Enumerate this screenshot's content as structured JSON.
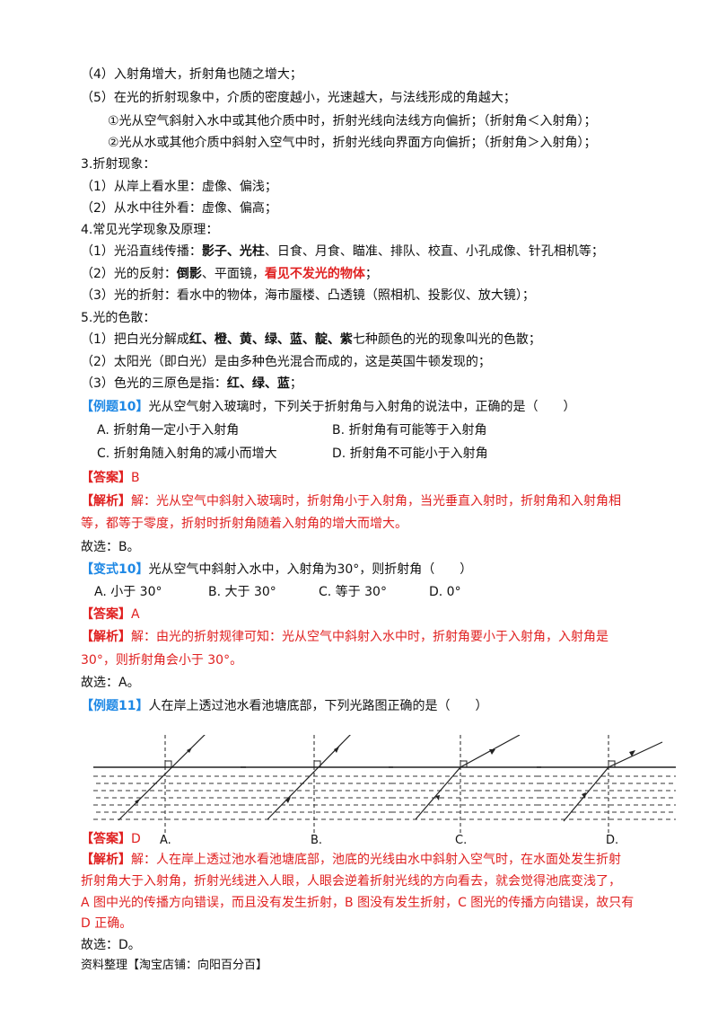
{
  "lines": {
    "l1": "（4）入射角增大，折射角也随之增大；",
    "l2": "（5）在光的折射现象中，介质的密度越小，光速越大，与法线形成的角越大；",
    "l3": "①光从空气斜射入水中或其他介质中时，折射光线向法线方向偏折；（折射角＜入射角）；",
    "l4": "②光从水或其他介质中斜射入空气中时，折射光线向界面方向偏折；（折射角＞入射角）；",
    "l5": "3.折射现象：",
    "l6": "（1）从岸上看水里：虚像、偏浅；",
    "l7": "（2）从水中往外看：虚像、偏高；",
    "l8": "4.常见光学现象及原理：",
    "l9a": "（1）光沿直线传播：",
    "l9b": "影子、光柱",
    "l9c": "、日食、月食、瞄准、排队、校直、小孔成像、针孔相机等；",
    "l10a": "（2）光的反射：",
    "l10b": "倒影",
    "l10c": "、平面镜，",
    "l10d": "看见不发光的物体",
    "l10e": "；",
    "l11": "（3）光的折射：看水中的物体，海市蜃楼、凸透镜（照相机、投影仪、放大镜）；",
    "l12": "5.光的色散：",
    "l13a": "（1）把白光分解成",
    "l13b": "红、橙、黄、绿、蓝、靛、紫",
    "l13c": "七种颜色的光的现象叫光的色散；",
    "l14": "（2）太阳光（即白光）是由多种色光混合而成的，这是英国牛顿发现的；",
    "l15a": "（3）色光的三原色是指：",
    "l15b": "红、绿、蓝",
    "l15c": "；"
  },
  "ex10": {
    "tag": "【例题10】",
    "question": "光从空气射入玻璃时，下列关于折射角与入射角的说法中，正确的是（　　）",
    "optA": "A. 折射角一定小于入射角",
    "optB": "B. 折射角有可能等于入射角",
    "optC": "C. 折射角随入射角的减小而增大",
    "optD": "D. 折射角不可能小于入射角",
    "answer_tag": "【答案】",
    "answer": "B",
    "analysis_tag": "【解析】",
    "analysis1": "解：光从空气中斜射入玻璃时，折射角小于入射角，当光垂直入射时，折射角和入射角相",
    "analysis2": "等，都等于零度，折射时折射角随着入射角的增大而增大。",
    "choice": "故选：B。"
  },
  "var10": {
    "tag": "【变式10】",
    "question": "光从空气中斜射入水中，入射角为30°，则折射角（　　）",
    "optA": "A. 小于 30°",
    "optB": "B. 大于 30°",
    "optC": "C. 等于 30°",
    "optD": "D. 0°",
    "answer_tag": "【答案】",
    "answer": "A",
    "analysis_tag": "【解析】",
    "analysis1": "解：由光的折射规律可知：光从空气中斜射入水中时，折射角要小于入射角，入射角是",
    "analysis2": "30°，则折射角会小于 30°。",
    "choice": "故选：A。"
  },
  "ex11": {
    "tag": "【例题11】",
    "question": "人在岸上透过池水看池塘底部，下列光路图正确的是（　　）",
    "labels": [
      "A.",
      "B.",
      "C.",
      "D."
    ],
    "answer_tag": "【答案】",
    "answer": "D",
    "analysis_tag": "【解析】",
    "analysis1": "解：人在岸上透过池水看池塘底部，池底的光线由水中斜射入空气时，在水面处发生折射",
    "analysis2": "折射角大于入射角，折射光线进入人眼，人眼会逆着折射光线的方向看去，就会觉得池底变浅了，",
    "analysis3": "A 图中光的传播方向错误，而且没有发生折射，B 图没有发生折射，C 图光的传播方向错误，故只有",
    "analysis4": "D 正确。",
    "choice": "故选：D。"
  },
  "footer": "资料整理【淘宝店铺：向阳百分百】",
  "colors": {
    "tag_blue": "#1e88e5",
    "red": "#e02020"
  }
}
